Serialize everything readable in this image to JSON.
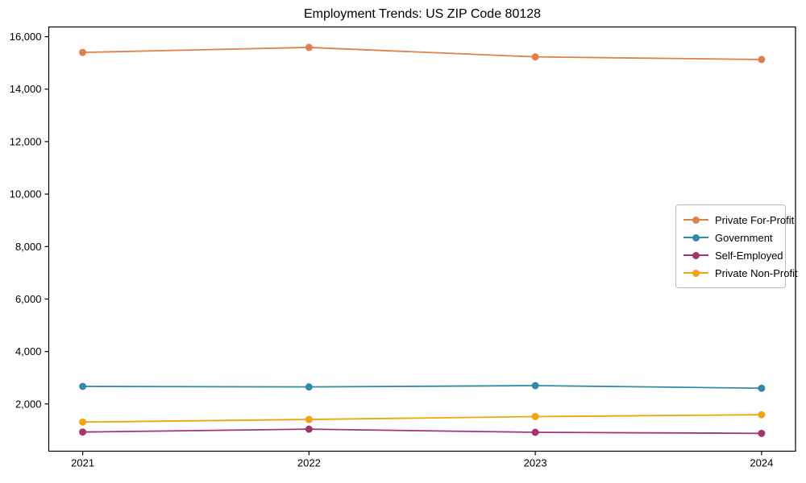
{
  "chart_data": {
    "type": "line",
    "title": "Employment Trends: US ZIP Code 80128",
    "xlabel": "",
    "ylabel": "",
    "categories": [
      2021,
      2022,
      2023,
      2024
    ],
    "series": [
      {
        "name": "Private For-Profit",
        "color": "#E0804C",
        "values": [
          15400,
          15590,
          15230,
          15130
        ]
      },
      {
        "name": "Government",
        "color": "#3389A8",
        "values": [
          2670,
          2650,
          2700,
          2600
        ]
      },
      {
        "name": "Self-Employed",
        "color": "#A23473",
        "values": [
          930,
          1040,
          920,
          880
        ]
      },
      {
        "name": "Private Non-Profit",
        "color": "#F2A30B",
        "values": [
          1310,
          1410,
          1520,
          1590
        ]
      }
    ],
    "xticks": [
      2021,
      2022,
      2023,
      2024
    ],
    "xtick_labels": [
      "2021",
      "2022",
      "2023",
      "2024"
    ],
    "yticks": [
      2000,
      4000,
      6000,
      8000,
      10000,
      12000,
      14000,
      16000
    ],
    "ytick_labels": [
      "2,000",
      "4,000",
      "6,000",
      "8,000",
      "10,000",
      "12,000",
      "14,000",
      "16,000"
    ],
    "xlim": [
      2020.85,
      2024.15
    ],
    "ylim": [
      200,
      16370
    ],
    "grid": false,
    "legend_position": "center-right",
    "axis_color": "#000000",
    "background_color": "#ffffff"
  }
}
